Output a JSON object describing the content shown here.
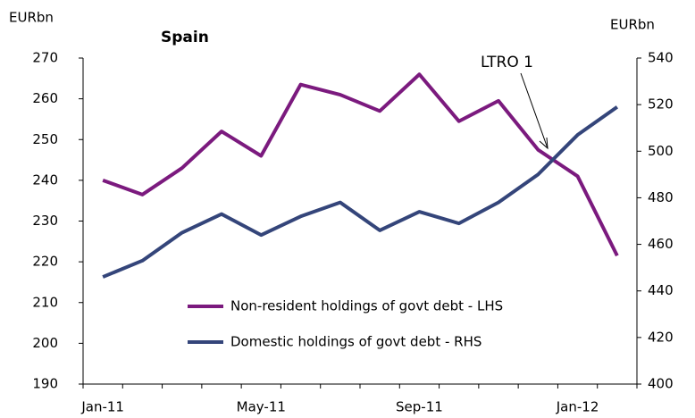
{
  "chart_data": {
    "type": "line",
    "title": "Spain",
    "ylabel": "EURbn",
    "y2label": "EURbn",
    "categories": [
      "Jan-11",
      null,
      null,
      null,
      "May-11",
      null,
      null,
      null,
      "Sep-11",
      null,
      null,
      null,
      "Jan-12",
      null
    ],
    "series": [
      {
        "name": "Non-resident holdings of govt debt - LHS",
        "color": "#7b1a7e",
        "axis": "y",
        "values": [
          240,
          236.5,
          243,
          252,
          246,
          263.5,
          261,
          257,
          266,
          254.5,
          259.5,
          247.5,
          241,
          221.5
        ]
      },
      {
        "name": "Domestic holdings of govt debt - RHS",
        "color": "#34457a",
        "axis": "y2",
        "values": [
          446,
          453,
          465,
          473,
          464,
          472,
          478,
          466,
          474,
          469,
          478,
          490,
          507,
          519
        ]
      }
    ],
    "ylim": [
      190,
      270
    ],
    "yticks": [
      190,
      200,
      210,
      220,
      230,
      240,
      250,
      260,
      270
    ],
    "y2lim": [
      400,
      540
    ],
    "y2ticks": [
      400,
      420,
      440,
      460,
      480,
      500,
      520,
      540
    ],
    "annotations": [
      {
        "text": "LTRO 1"
      }
    ]
  }
}
